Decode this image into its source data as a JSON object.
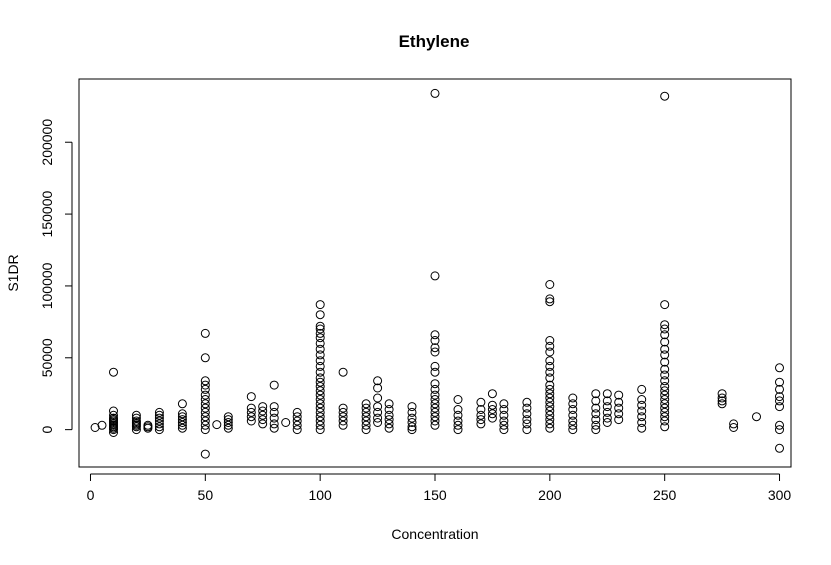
{
  "chart_data": {
    "type": "scatter",
    "title": "Ethylene",
    "xlabel": "Concentration",
    "ylabel": "S1DR",
    "xlim": [
      -5,
      305
    ],
    "ylim": [
      -26000,
      244000
    ],
    "xticks": [
      0,
      50,
      100,
      150,
      200,
      250,
      300
    ],
    "yticks": [
      0,
      50000,
      100000,
      150000,
      200000
    ],
    "grid": false,
    "legend": "none",
    "marker": "open-circle",
    "series": [
      {
        "points": [
          [
            2,
            1500
          ],
          [
            5,
            3000
          ],
          [
            10,
            40000
          ],
          [
            10,
            13000
          ],
          [
            10,
            10000
          ],
          [
            10,
            8000
          ],
          [
            10,
            7000
          ],
          [
            10,
            6000
          ],
          [
            10,
            5000
          ],
          [
            10,
            4000
          ],
          [
            10,
            3000
          ],
          [
            10,
            2000
          ],
          [
            10,
            1000
          ],
          [
            10,
            0
          ],
          [
            10,
            -2000
          ],
          [
            20,
            10000
          ],
          [
            20,
            8000
          ],
          [
            20,
            6000
          ],
          [
            20,
            5000
          ],
          [
            20,
            4000
          ],
          [
            20,
            3000
          ],
          [
            20,
            2000
          ],
          [
            20,
            0
          ],
          [
            25,
            3000
          ],
          [
            25,
            2000
          ],
          [
            25,
            1000
          ],
          [
            30,
            12000
          ],
          [
            30,
            10000
          ],
          [
            30,
            8000
          ],
          [
            30,
            6000
          ],
          [
            30,
            4000
          ],
          [
            30,
            2000
          ],
          [
            30,
            0
          ],
          [
            40,
            18000
          ],
          [
            40,
            11000
          ],
          [
            40,
            9000
          ],
          [
            40,
            7000
          ],
          [
            40,
            5000
          ],
          [
            40,
            3000
          ],
          [
            40,
            1000
          ],
          [
            50,
            67000
          ],
          [
            50,
            50000
          ],
          [
            50,
            34000
          ],
          [
            50,
            31000
          ],
          [
            50,
            28000
          ],
          [
            50,
            24000
          ],
          [
            50,
            21000
          ],
          [
            50,
            18000
          ],
          [
            50,
            15000
          ],
          [
            50,
            12000
          ],
          [
            50,
            9000
          ],
          [
            50,
            6000
          ],
          [
            50,
            3000
          ],
          [
            50,
            0
          ],
          [
            50,
            -17000
          ],
          [
            55,
            3500
          ],
          [
            60,
            9000
          ],
          [
            60,
            7000
          ],
          [
            60,
            5000
          ],
          [
            60,
            3000
          ],
          [
            60,
            1000
          ],
          [
            70,
            23000
          ],
          [
            70,
            15000
          ],
          [
            70,
            12000
          ],
          [
            70,
            9000
          ],
          [
            70,
            6000
          ],
          [
            75,
            16000
          ],
          [
            75,
            13000
          ],
          [
            75,
            10000
          ],
          [
            75,
            7000
          ],
          [
            75,
            4000
          ],
          [
            80,
            31000
          ],
          [
            80,
            16000
          ],
          [
            80,
            12000
          ],
          [
            80,
            8000
          ],
          [
            80,
            4000
          ],
          [
            80,
            1000
          ],
          [
            85,
            5000
          ],
          [
            90,
            12000
          ],
          [
            90,
            9000
          ],
          [
            90,
            6000
          ],
          [
            90,
            3000
          ],
          [
            90,
            0
          ],
          [
            100,
            87000
          ],
          [
            100,
            80000
          ],
          [
            100,
            72000
          ],
          [
            100,
            70000
          ],
          [
            100,
            67000
          ],
          [
            100,
            64000
          ],
          [
            100,
            60000
          ],
          [
            100,
            56000
          ],
          [
            100,
            52000
          ],
          [
            100,
            48000
          ],
          [
            100,
            44000
          ],
          [
            100,
            40000
          ],
          [
            100,
            36000
          ],
          [
            100,
            33000
          ],
          [
            100,
            30000
          ],
          [
            100,
            27000
          ],
          [
            100,
            24000
          ],
          [
            100,
            21000
          ],
          [
            100,
            18000
          ],
          [
            100,
            15000
          ],
          [
            100,
            12000
          ],
          [
            100,
            9000
          ],
          [
            100,
            6000
          ],
          [
            100,
            3000
          ],
          [
            100,
            0
          ],
          [
            110,
            40000
          ],
          [
            110,
            15000
          ],
          [
            110,
            12000
          ],
          [
            110,
            9000
          ],
          [
            110,
            6000
          ],
          [
            110,
            3000
          ],
          [
            120,
            18000
          ],
          [
            120,
            15000
          ],
          [
            120,
            12000
          ],
          [
            120,
            9000
          ],
          [
            120,
            6000
          ],
          [
            120,
            3000
          ],
          [
            120,
            0
          ],
          [
            125,
            34000
          ],
          [
            125,
            29000
          ],
          [
            125,
            22000
          ],
          [
            125,
            16000
          ],
          [
            125,
            12000
          ],
          [
            125,
            8000
          ],
          [
            125,
            5000
          ],
          [
            130,
            18000
          ],
          [
            130,
            14000
          ],
          [
            130,
            10000
          ],
          [
            130,
            7000
          ],
          [
            130,
            4000
          ],
          [
            130,
            1000
          ],
          [
            140,
            16000
          ],
          [
            140,
            12000
          ],
          [
            140,
            8000
          ],
          [
            140,
            5000
          ],
          [
            140,
            2000
          ],
          [
            140,
            0
          ],
          [
            150,
            234000
          ],
          [
            150,
            107000
          ],
          [
            150,
            66000
          ],
          [
            150,
            62000
          ],
          [
            150,
            57000
          ],
          [
            150,
            54000
          ],
          [
            150,
            44000
          ],
          [
            150,
            40000
          ],
          [
            150,
            32000
          ],
          [
            150,
            28000
          ],
          [
            150,
            24000
          ],
          [
            150,
            21000
          ],
          [
            150,
            18000
          ],
          [
            150,
            15000
          ],
          [
            150,
            12000
          ],
          [
            150,
            9000
          ],
          [
            150,
            6000
          ],
          [
            150,
            3000
          ],
          [
            160,
            21000
          ],
          [
            160,
            14000
          ],
          [
            160,
            10000
          ],
          [
            160,
            6000
          ],
          [
            160,
            3000
          ],
          [
            160,
            0
          ],
          [
            170,
            19000
          ],
          [
            170,
            14000
          ],
          [
            170,
            10000
          ],
          [
            170,
            7000
          ],
          [
            170,
            4000
          ],
          [
            175,
            25000
          ],
          [
            175,
            17000
          ],
          [
            175,
            14000
          ],
          [
            175,
            11000
          ],
          [
            175,
            8000
          ],
          [
            180,
            18000
          ],
          [
            180,
            14000
          ],
          [
            180,
            10000
          ],
          [
            180,
            6000
          ],
          [
            180,
            3000
          ],
          [
            180,
            0
          ],
          [
            190,
            19000
          ],
          [
            190,
            15000
          ],
          [
            190,
            11000
          ],
          [
            190,
            7000
          ],
          [
            190,
            4000
          ],
          [
            190,
            0
          ],
          [
            200,
            101000
          ],
          [
            200,
            91000
          ],
          [
            200,
            89000
          ],
          [
            200,
            62000
          ],
          [
            200,
            58000
          ],
          [
            200,
            54000
          ],
          [
            200,
            48000
          ],
          [
            200,
            44000
          ],
          [
            200,
            40000
          ],
          [
            200,
            36000
          ],
          [
            200,
            31000
          ],
          [
            200,
            28000
          ],
          [
            200,
            25000
          ],
          [
            200,
            22000
          ],
          [
            200,
            19000
          ],
          [
            200,
            16000
          ],
          [
            200,
            13000
          ],
          [
            200,
            10000
          ],
          [
            200,
            7000
          ],
          [
            200,
            4000
          ],
          [
            200,
            1000
          ],
          [
            210,
            22000
          ],
          [
            210,
            18000
          ],
          [
            210,
            14000
          ],
          [
            210,
            10000
          ],
          [
            210,
            6000
          ],
          [
            210,
            3000
          ],
          [
            210,
            0
          ],
          [
            220,
            25000
          ],
          [
            220,
            20000
          ],
          [
            220,
            15000
          ],
          [
            220,
            11000
          ],
          [
            220,
            7000
          ],
          [
            220,
            3000
          ],
          [
            220,
            0
          ],
          [
            225,
            25000
          ],
          [
            225,
            20000
          ],
          [
            225,
            16000
          ],
          [
            225,
            12000
          ],
          [
            225,
            8000
          ],
          [
            225,
            5000
          ],
          [
            230,
            24000
          ],
          [
            230,
            19000
          ],
          [
            230,
            15000
          ],
          [
            230,
            11000
          ],
          [
            230,
            7000
          ],
          [
            240,
            28000
          ],
          [
            240,
            21000
          ],
          [
            240,
            17000
          ],
          [
            240,
            13000
          ],
          [
            240,
            9000
          ],
          [
            240,
            5000
          ],
          [
            240,
            1000
          ],
          [
            250,
            232000
          ],
          [
            250,
            87000
          ],
          [
            250,
            73000
          ],
          [
            250,
            70000
          ],
          [
            250,
            66000
          ],
          [
            250,
            61000
          ],
          [
            250,
            56000
          ],
          [
            250,
            52000
          ],
          [
            250,
            47000
          ],
          [
            250,
            42000
          ],
          [
            250,
            38000
          ],
          [
            250,
            34000
          ],
          [
            250,
            30000
          ],
          [
            250,
            27000
          ],
          [
            250,
            24000
          ],
          [
            250,
            21000
          ],
          [
            250,
            18000
          ],
          [
            250,
            15000
          ],
          [
            250,
            12000
          ],
          [
            250,
            9000
          ],
          [
            250,
            6000
          ],
          [
            250,
            2000
          ],
          [
            275,
            25000
          ],
          [
            275,
            22000
          ],
          [
            275,
            20000
          ],
          [
            275,
            18000
          ],
          [
            280,
            4000
          ],
          [
            280,
            1500
          ],
          [
            290,
            9000
          ],
          [
            300,
            43000
          ],
          [
            300,
            33000
          ],
          [
            300,
            28000
          ],
          [
            300,
            23000
          ],
          [
            300,
            20000
          ],
          [
            300,
            16000
          ],
          [
            300,
            3000
          ],
          [
            300,
            0
          ],
          [
            300,
            -13000
          ]
        ]
      }
    ]
  }
}
